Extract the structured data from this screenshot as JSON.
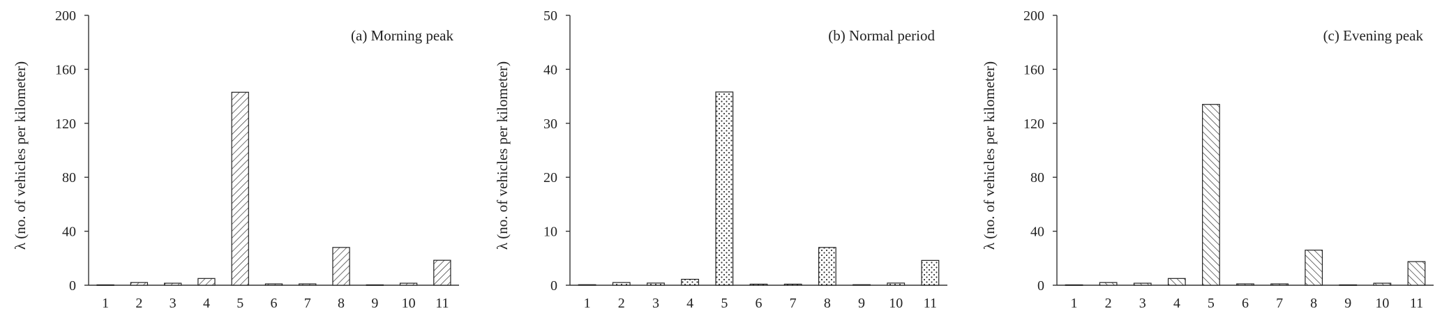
{
  "chart_data": [
    {
      "type": "bar",
      "title": "(a) Morning peak",
      "ylabel": "λ (no. of vehicles per kilometer)",
      "xlabel": "",
      "categories": [
        "1",
        "2",
        "3",
        "4",
        "5",
        "6",
        "7",
        "8",
        "9",
        "10",
        "11"
      ],
      "values": [
        0.3,
        2,
        1.5,
        5,
        143,
        1,
        1,
        28,
        0.3,
        1.5,
        18.5
      ],
      "ylim": [
        0,
        200
      ],
      "yticks": [
        "0",
        "40",
        "80",
        "120",
        "160",
        "200"
      ],
      "pattern": "hatch-forward",
      "grid": false
    },
    {
      "type": "bar",
      "title": "(b) Normal period",
      "ylabel": "λ (no. of vehicles per kilometer)",
      "xlabel": "",
      "categories": [
        "1",
        "2",
        "3",
        "4",
        "5",
        "6",
        "7",
        "8",
        "9",
        "10",
        "11"
      ],
      "values": [
        0.1,
        0.5,
        0.4,
        1.1,
        35.8,
        0.2,
        0.2,
        7,
        0.1,
        0.4,
        4.6
      ],
      "ylim": [
        0,
        50
      ],
      "yticks": [
        "0",
        "10",
        "20",
        "30",
        "40",
        "50"
      ],
      "pattern": "dots",
      "grid": false
    },
    {
      "type": "bar",
      "title": "(c) Evening peak",
      "ylabel": "λ (no. of vehicles per kilometer)",
      "xlabel": "",
      "categories": [
        "1",
        "2",
        "3",
        "4",
        "5",
        "6",
        "7",
        "8",
        "9",
        "10",
        "11"
      ],
      "values": [
        0.3,
        2,
        1.5,
        5,
        134,
        1,
        1,
        26,
        0.3,
        1.5,
        17.5
      ],
      "ylim": [
        0,
        200
      ],
      "yticks": [
        "0",
        "40",
        "80",
        "120",
        "160",
        "200"
      ],
      "pattern": "hatch-back",
      "grid": false
    }
  ]
}
